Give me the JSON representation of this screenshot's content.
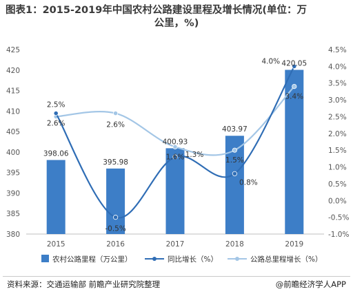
{
  "title": {
    "line1": "图表1：2015-2019年中国农村公路建设里程及增长情况(单位：万",
    "line2": "公里，%)"
  },
  "colors": {
    "bar": "#3d7ec7",
    "yoy": "#2f6db5",
    "total": "#a3c6e6",
    "axis": "#888888",
    "grid": "#e6e6e6"
  },
  "chart_data": {
    "type": "bar",
    "categories": [
      "2015",
      "2016",
      "2017",
      "2018",
      "2019"
    ],
    "series": [
      {
        "name": "农村公路里程（万公里）",
        "type": "bar",
        "axis": "left",
        "values": [
          398.06,
          395.98,
          400.93,
          403.97,
          420.05
        ],
        "labels": [
          "398.06",
          "395.98",
          "400.93",
          "403.97",
          "420.05"
        ]
      },
      {
        "name": "同比增长（%）",
        "type": "line",
        "axis": "right",
        "values": [
          2.6,
          -0.5,
          1.3,
          0.8,
          4.0
        ],
        "labels": [
          "2.6%",
          "-0.5%",
          "1.3%",
          "0.8%",
          "4.0%"
        ]
      },
      {
        "name": "公路总里程增长（%）",
        "type": "line",
        "axis": "right",
        "values": [
          2.5,
          2.6,
          1.6,
          1.5,
          3.4
        ],
        "labels": [
          "2.5%",
          "2.6%",
          "1.6%",
          "1.5%",
          "3.4%"
        ]
      }
    ],
    "y_left": {
      "min": 380,
      "max": 425,
      "step": 5,
      "ticks": [
        "380",
        "385",
        "390",
        "395",
        "400",
        "405",
        "410",
        "415",
        "420",
        "425"
      ]
    },
    "y_right": {
      "min": -1.0,
      "max": 4.5,
      "step": 0.5,
      "ticks": [
        "-1.0%",
        "-0.5%",
        "0.0%",
        "0.5%",
        "1.0%",
        "1.5%",
        "2.0%",
        "2.5%",
        "3.0%",
        "3.5%",
        "4.0%",
        "4.5%"
      ]
    },
    "legend": [
      "农村公路里程（万公里）",
      "同比增长（%）",
      "公路总里程增长（%）"
    ],
    "legend_position": "bottom",
    "grid": false
  },
  "footer": {
    "source": "资料来源：交通运输部 前瞻产业研究院整理",
    "brand": "@前瞻经济学人APP"
  }
}
